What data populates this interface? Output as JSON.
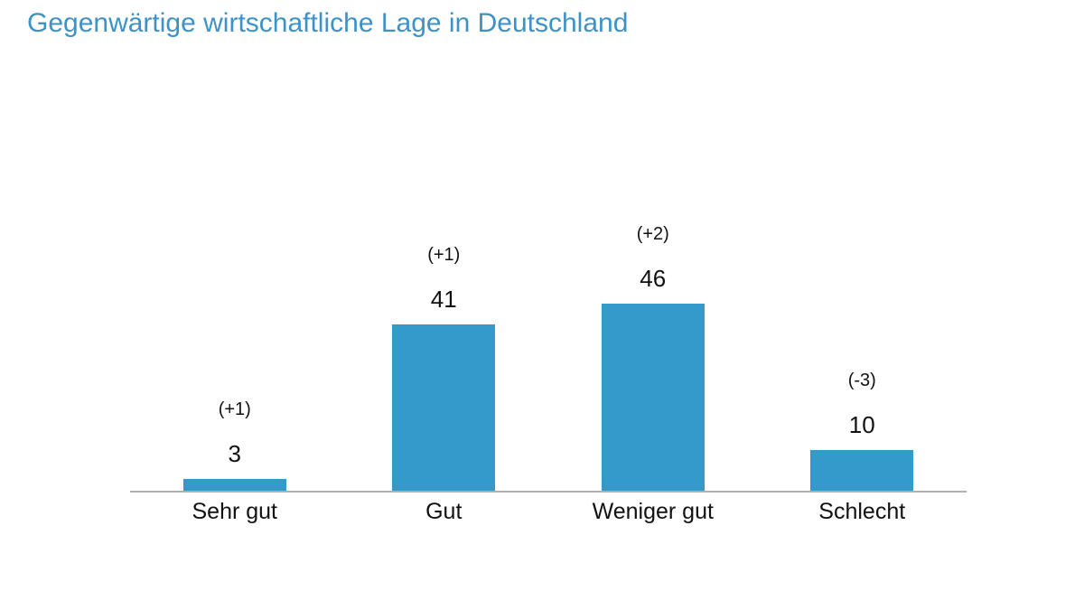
{
  "header": {
    "title": "Gegenwärtige wirtschaftliche Lage in Deutschland",
    "title_color": "#3e92c5"
  },
  "chart_data": {
    "type": "bar",
    "title": "Gegenwärtige wirtschaftliche Lage in Deutschland",
    "categories": [
      "Sehr gut",
      "Gut",
      "Weniger gut",
      "Schlecht"
    ],
    "values": [
      3,
      41,
      46,
      10
    ],
    "value_labels": [
      "3",
      "41",
      "46",
      "10"
    ],
    "change_labels": [
      "(+1)",
      "(+1)",
      "(+2)",
      "(-3)"
    ],
    "bar_color": "#3499cb",
    "axis_color": "#b0b0b0",
    "label_color": "#111111",
    "xlabel": "",
    "ylabel": "",
    "ylim": [
      0,
      50
    ],
    "grid": false,
    "legend": false
  }
}
